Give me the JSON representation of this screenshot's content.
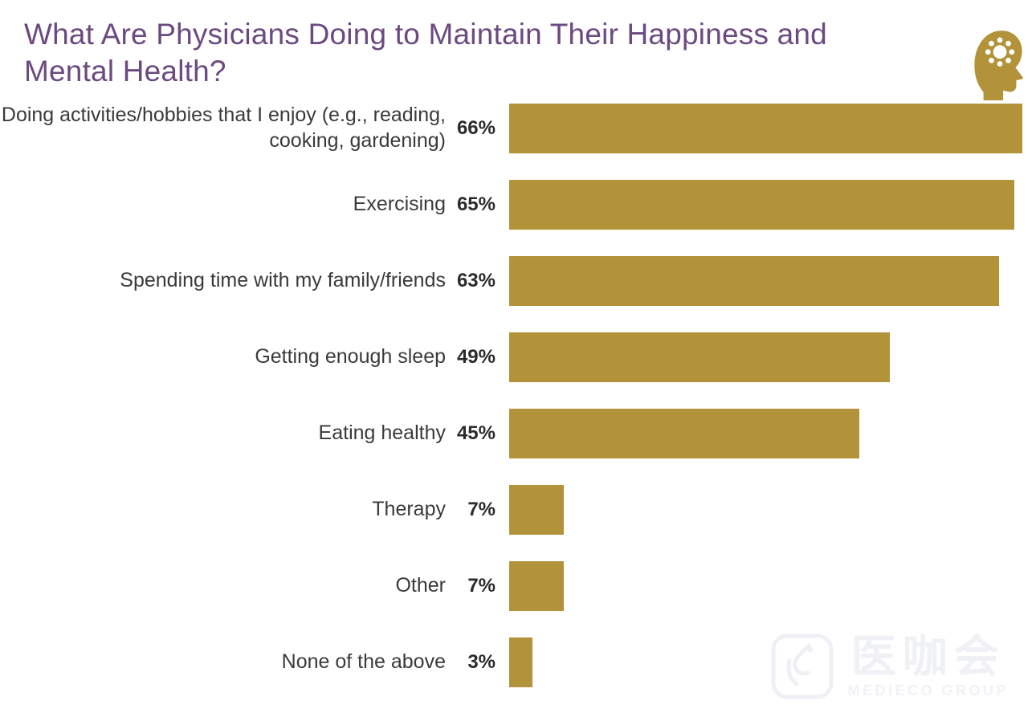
{
  "header": {
    "title": "What Are Physicians Doing to Maintain Their Happiness and Mental Health?",
    "title_color": "#6b4a80",
    "icon": "head-with-sun-icon",
    "icon_color": "#b2933a"
  },
  "chart_data": {
    "type": "bar",
    "orientation": "horizontal",
    "title": "What Are Physicians Doing to Maintain Their Happiness and Mental Health?",
    "categories": [
      "Doing activities/hobbies that I enjoy (e.g., reading, cooking, gardening)",
      "Exercising",
      "Spending time with my family/friends",
      "Getting enough sleep",
      "Eating healthy",
      "Therapy",
      "Other",
      "None of the above"
    ],
    "values": [
      66,
      65,
      63,
      49,
      45,
      7,
      7,
      3
    ],
    "value_labels": [
      "66%",
      "65%",
      "63%",
      "49%",
      "45%",
      "7%",
      "7%",
      "3%"
    ],
    "unit": "%",
    "xlim": [
      0,
      66
    ],
    "grid": false,
    "legend": false,
    "bar_color": "#b2933a",
    "label_color": "#3a3a3a",
    "value_color": "#2b2b29"
  },
  "watermark": {
    "cjk_text": "医咖会",
    "subtext": "MEDIECO GROUP"
  }
}
